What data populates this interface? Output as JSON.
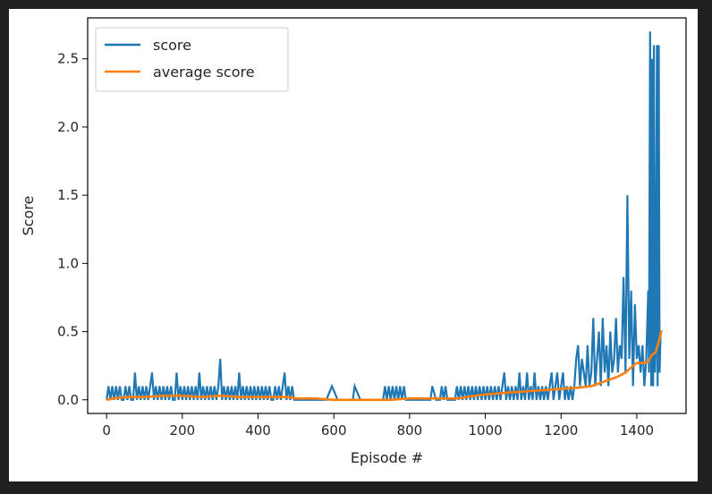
{
  "chart_data": {
    "type": "line",
    "title": "",
    "xlabel": "Episode #",
    "ylabel": "Score",
    "xlim": [
      -50,
      1530
    ],
    "ylim": [
      -0.1,
      2.8
    ],
    "xticks": [
      0,
      200,
      400,
      600,
      800,
      1000,
      1200,
      1400
    ],
    "xtick_labels": [
      "0",
      "200",
      "400",
      "600",
      "800",
      "1000",
      "1200",
      "1400"
    ],
    "yticks": [
      0.0,
      0.5,
      1.0,
      1.5,
      2.0,
      2.5
    ],
    "ytick_labels": [
      "0.0",
      "0.5",
      "1.0",
      "1.5",
      "2.0",
      "2.5"
    ],
    "grid": false,
    "legend": "upper left",
    "series": [
      {
        "name": "score",
        "color": "#1f77b4",
        "x": [
          0,
          5,
          10,
          15,
          20,
          25,
          30,
          35,
          40,
          45,
          50,
          55,
          60,
          65,
          70,
          75,
          80,
          85,
          90,
          95,
          100,
          105,
          110,
          115,
          120,
          125,
          130,
          135,
          140,
          145,
          150,
          155,
          160,
          165,
          170,
          175,
          180,
          185,
          190,
          195,
          200,
          205,
          210,
          215,
          220,
          225,
          230,
          235,
          240,
          245,
          250,
          255,
          260,
          265,
          270,
          275,
          280,
          285,
          290,
          295,
          300,
          305,
          310,
          315,
          320,
          325,
          330,
          335,
          340,
          345,
          350,
          355,
          360,
          365,
          370,
          375,
          380,
          385,
          390,
          395,
          400,
          405,
          410,
          415,
          420,
          425,
          430,
          435,
          440,
          445,
          450,
          455,
          460,
          465,
          470,
          475,
          480,
          485,
          490,
          495,
          500,
          520,
          540,
          560,
          580,
          595,
          610,
          630,
          650,
          655,
          670,
          690,
          710,
          730,
          735,
          740,
          745,
          750,
          755,
          760,
          765,
          770,
          775,
          780,
          785,
          790,
          800,
          820,
          840,
          855,
          860,
          870,
          880,
          885,
          890,
          895,
          900,
          910,
          920,
          925,
          930,
          935,
          940,
          945,
          950,
          955,
          960,
          965,
          970,
          975,
          980,
          985,
          990,
          995,
          1000,
          1005,
          1010,
          1015,
          1020,
          1025,
          1030,
          1035,
          1040,
          1045,
          1050,
          1055,
          1060,
          1065,
          1070,
          1075,
          1080,
          1085,
          1090,
          1095,
          1100,
          1105,
          1110,
          1115,
          1120,
          1125,
          1130,
          1135,
          1140,
          1145,
          1150,
          1155,
          1160,
          1165,
          1170,
          1175,
          1180,
          1185,
          1190,
          1195,
          1200,
          1205,
          1210,
          1215,
          1220,
          1225,
          1230,
          1235,
          1240,
          1245,
          1250,
          1255,
          1260,
          1265,
          1270,
          1275,
          1280,
          1285,
          1290,
          1295,
          1300,
          1305,
          1310,
          1315,
          1320,
          1325,
          1330,
          1335,
          1340,
          1345,
          1350,
          1355,
          1360,
          1365,
          1370,
          1375,
          1380,
          1385,
          1390,
          1395,
          1400,
          1405,
          1410,
          1415,
          1420,
          1425,
          1430,
          1432,
          1435,
          1438,
          1440,
          1443,
          1445,
          1448,
          1450,
          1453,
          1455,
          1458,
          1460,
          1463
        ],
        "y": [
          0.0,
          0.1,
          0.0,
          0.1,
          0.0,
          0.1,
          0.0,
          0.1,
          0.0,
          0.0,
          0.1,
          0.0,
          0.1,
          0.0,
          0.0,
          0.2,
          0.0,
          0.1,
          0.0,
          0.1,
          0.0,
          0.1,
          0.0,
          0.1,
          0.2,
          0.0,
          0.1,
          0.0,
          0.1,
          0.0,
          0.1,
          0.0,
          0.1,
          0.0,
          0.1,
          0.0,
          0.0,
          0.2,
          0.0,
          0.1,
          0.0,
          0.1,
          0.0,
          0.1,
          0.0,
          0.1,
          0.0,
          0.1,
          0.0,
          0.2,
          0.0,
          0.1,
          0.0,
          0.1,
          0.0,
          0.1,
          0.0,
          0.1,
          0.0,
          0.1,
          0.3,
          0.0,
          0.1,
          0.0,
          0.1,
          0.0,
          0.1,
          0.0,
          0.1,
          0.0,
          0.2,
          0.0,
          0.1,
          0.0,
          0.1,
          0.0,
          0.1,
          0.0,
          0.1,
          0.0,
          0.1,
          0.0,
          0.1,
          0.0,
          0.1,
          0.0,
          0.1,
          0.0,
          0.0,
          0.1,
          0.0,
          0.1,
          0.0,
          0.1,
          0.2,
          0.0,
          0.1,
          0.0,
          0.1,
          0.0,
          0.0,
          0.0,
          0.0,
          0.0,
          0.0,
          0.1,
          0.0,
          0.0,
          0.0,
          0.1,
          0.0,
          0.0,
          0.0,
          0.0,
          0.1,
          0.0,
          0.1,
          0.0,
          0.1,
          0.0,
          0.1,
          0.0,
          0.1,
          0.0,
          0.1,
          0.0,
          0.0,
          0.0,
          0.0,
          0.0,
          0.1,
          0.0,
          0.0,
          0.1,
          0.0,
          0.1,
          0.0,
          0.0,
          0.0,
          0.1,
          0.0,
          0.1,
          0.0,
          0.1,
          0.0,
          0.1,
          0.0,
          0.1,
          0.0,
          0.1,
          0.0,
          0.1,
          0.0,
          0.1,
          0.0,
          0.1,
          0.0,
          0.1,
          0.0,
          0.1,
          0.0,
          0.1,
          0.0,
          0.1,
          0.2,
          0.0,
          0.1,
          0.0,
          0.1,
          0.0,
          0.1,
          0.0,
          0.2,
          0.0,
          0.1,
          0.0,
          0.2,
          0.0,
          0.1,
          0.0,
          0.2,
          0.0,
          0.1,
          0.0,
          0.1,
          0.0,
          0.1,
          0.0,
          0.1,
          0.2,
          0.0,
          0.1,
          0.2,
          0.0,
          0.1,
          0.2,
          0.0,
          0.1,
          0.0,
          0.1,
          0.0,
          0.1,
          0.3,
          0.4,
          0.1,
          0.3,
          0.2,
          0.1,
          0.4,
          0.1,
          0.2,
          0.6,
          0.1,
          0.3,
          0.5,
          0.1,
          0.6,
          0.2,
          0.4,
          0.1,
          0.5,
          0.2,
          0.3,
          0.6,
          0.2,
          0.4,
          0.3,
          0.9,
          0.2,
          1.5,
          0.3,
          0.8,
          0.1,
          0.7,
          0.3,
          0.4,
          0.2,
          0.4,
          0.1,
          0.3,
          0.8,
          0.2,
          2.7,
          0.1,
          2.5,
          0.1,
          2.6,
          0.2,
          0.4,
          2.6,
          0.1,
          2.6,
          0.2,
          0.5
        ]
      },
      {
        "name": "average score",
        "color": "#ff7f0e",
        "x": [
          0,
          20,
          50,
          100,
          150,
          200,
          250,
          300,
          350,
          400,
          450,
          480,
          500,
          550,
          600,
          650,
          700,
          750,
          800,
          850,
          900,
          930,
          950,
          1000,
          1050,
          1100,
          1150,
          1200,
          1250,
          1280,
          1300,
          1330,
          1350,
          1370,
          1390,
          1400,
          1420,
          1430,
          1440,
          1450,
          1460,
          1465
        ],
        "y": [
          0.0,
          0.01,
          0.02,
          0.02,
          0.03,
          0.03,
          0.02,
          0.03,
          0.02,
          0.02,
          0.02,
          0.02,
          0.01,
          0.01,
          0.0,
          0.0,
          0.0,
          0.0,
          0.01,
          0.01,
          0.01,
          0.01,
          0.02,
          0.04,
          0.05,
          0.06,
          0.07,
          0.08,
          0.09,
          0.1,
          0.12,
          0.15,
          0.17,
          0.2,
          0.25,
          0.27,
          0.27,
          0.28,
          0.33,
          0.35,
          0.45,
          0.51
        ]
      }
    ]
  }
}
